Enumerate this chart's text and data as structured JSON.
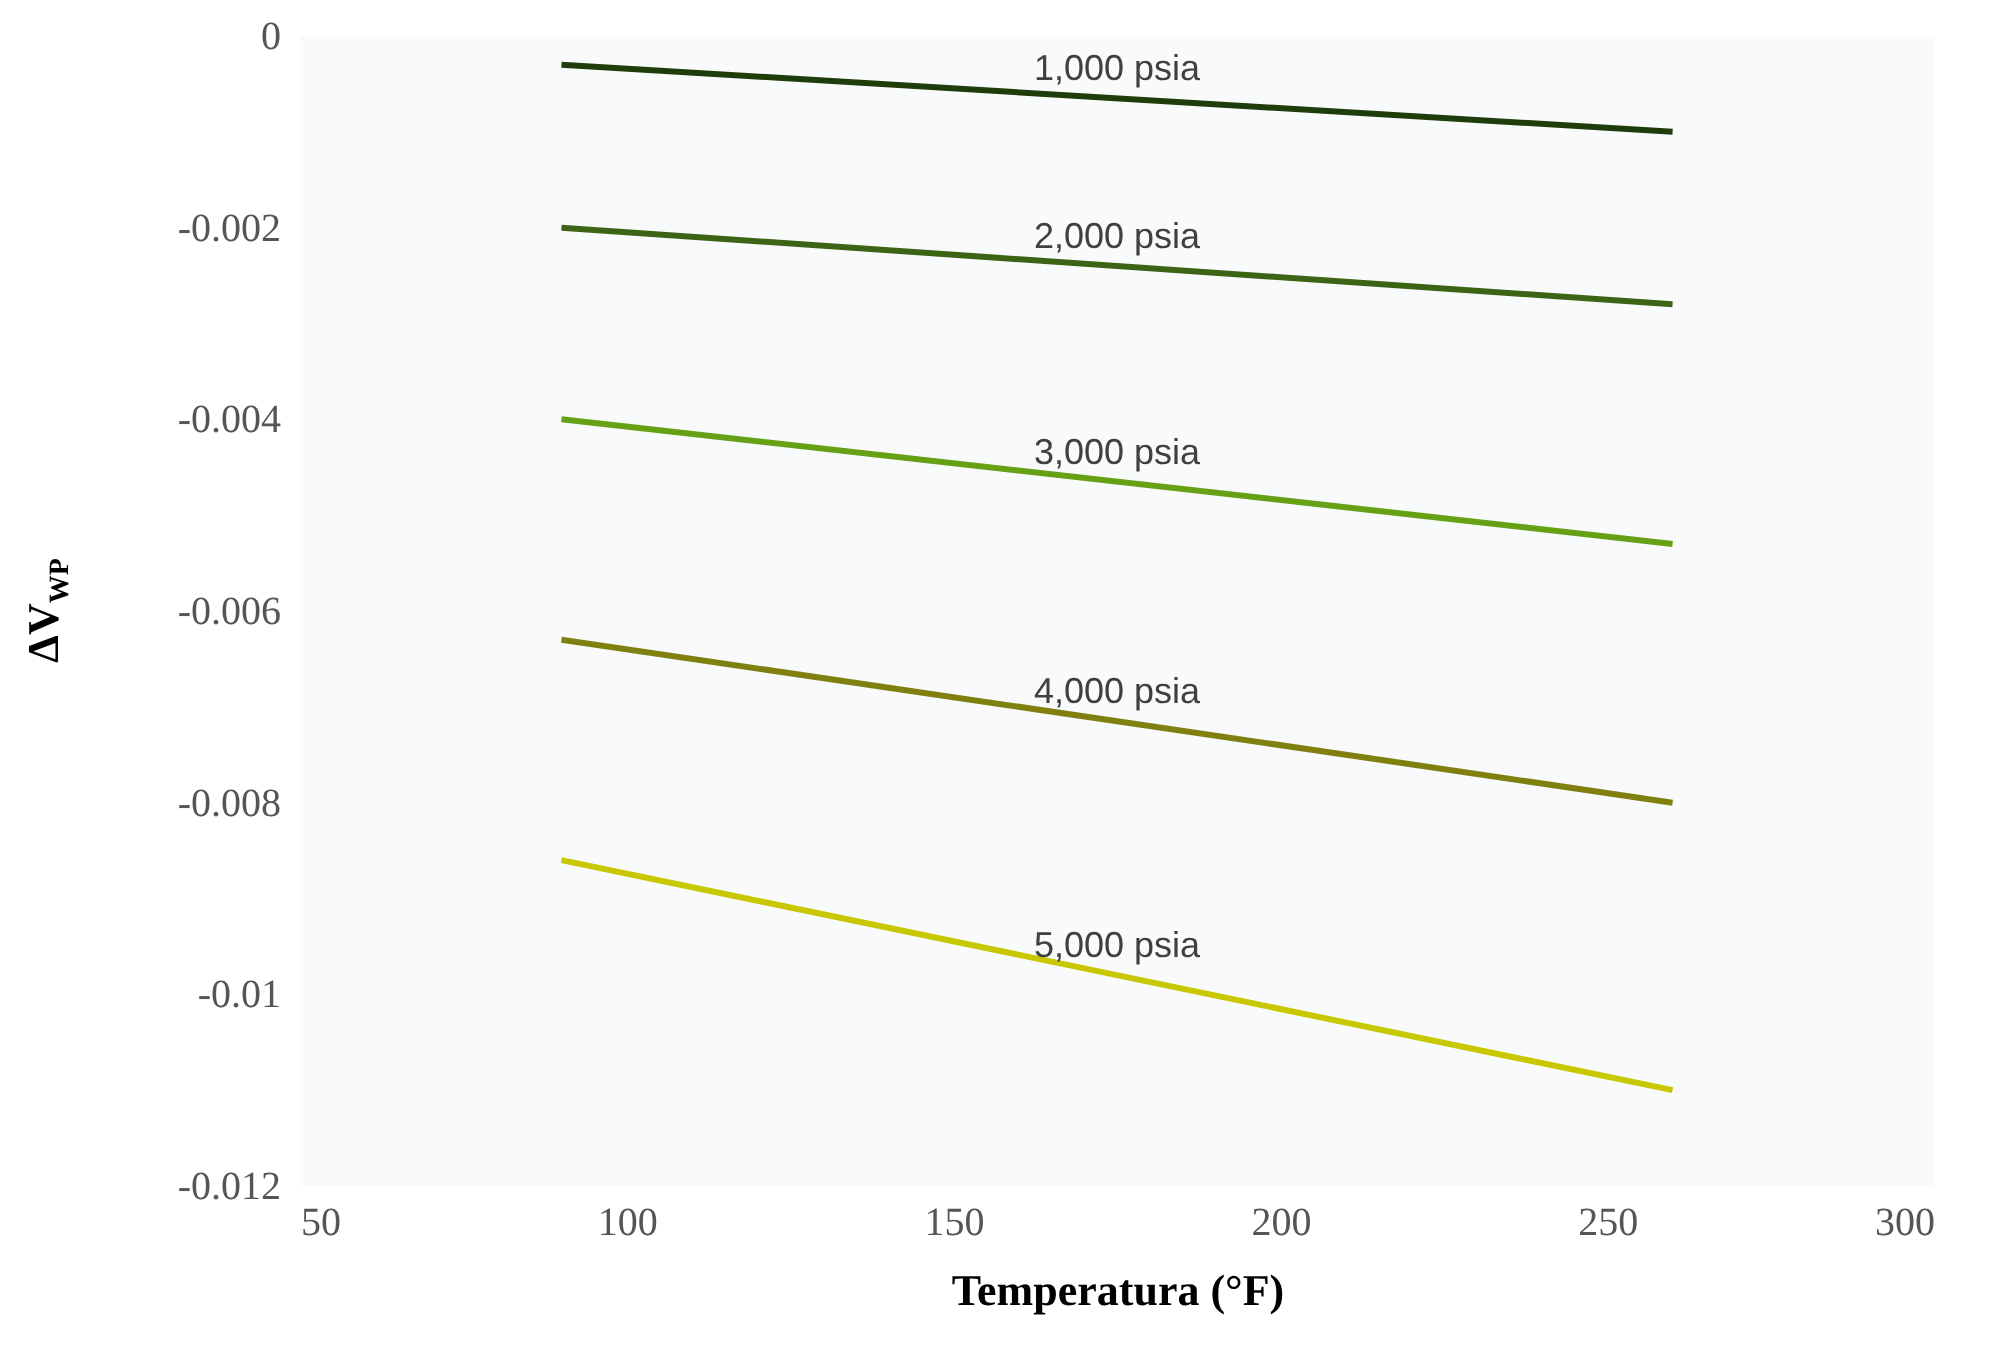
{
  "chart_data": {
    "type": "line",
    "xlabel": "Temperatura (°F)",
    "ylabel": "ΔV$_{WP}$",
    "x": [
      90,
      260
    ],
    "series": [
      {
        "name": "1,000 psia",
        "color": "#1e3d0a",
        "values": [
          -0.0003,
          -0.001
        ]
      },
      {
        "name": "2,000 psia",
        "color": "#3c6414",
        "values": [
          -0.002,
          -0.0028
        ]
      },
      {
        "name": "3,000 psia",
        "color": "#66a014",
        "values": [
          -0.004,
          -0.0053
        ]
      },
      {
        "name": "4,000 psia",
        "color": "#808010",
        "values": [
          -0.0063,
          -0.008
        ]
      },
      {
        "name": "5,000 psia",
        "color": "#c8c800",
        "values": [
          -0.0086,
          -0.011
        ]
      }
    ],
    "xlim": [
      50,
      300
    ],
    "xticks": [
      50,
      100,
      150,
      200,
      250,
      300
    ],
    "ylim": [
      -0.012,
      0
    ],
    "yticks": [
      -0.012,
      -0.01,
      -0.008,
      -0.006,
      -0.004,
      -0.002,
      0
    ],
    "line_style": "solid"
  }
}
